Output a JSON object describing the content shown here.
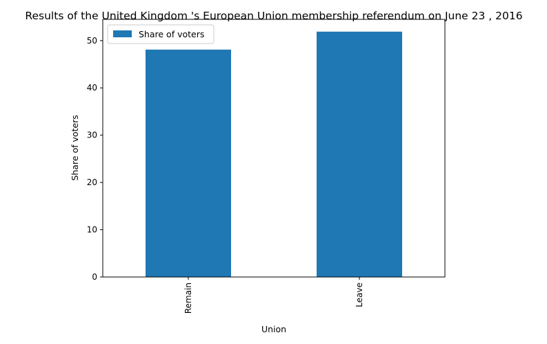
{
  "chart_data": {
    "type": "bar",
    "title": "Results of the United Kingdom 's European Union membership referendum on June 23 , 2016",
    "xlabel": "Union",
    "ylabel": "Share of voters",
    "categories": [
      "Remain",
      "Leave"
    ],
    "series": [
      {
        "name": "Share of voters",
        "values": [
          48.1,
          51.9
        ],
        "color": "#1f77b4"
      }
    ],
    "ylim": [
      0,
      54.5
    ],
    "yticks": [
      0,
      10,
      20,
      30,
      40,
      50
    ],
    "legend_position": "top-left",
    "grid": false
  }
}
